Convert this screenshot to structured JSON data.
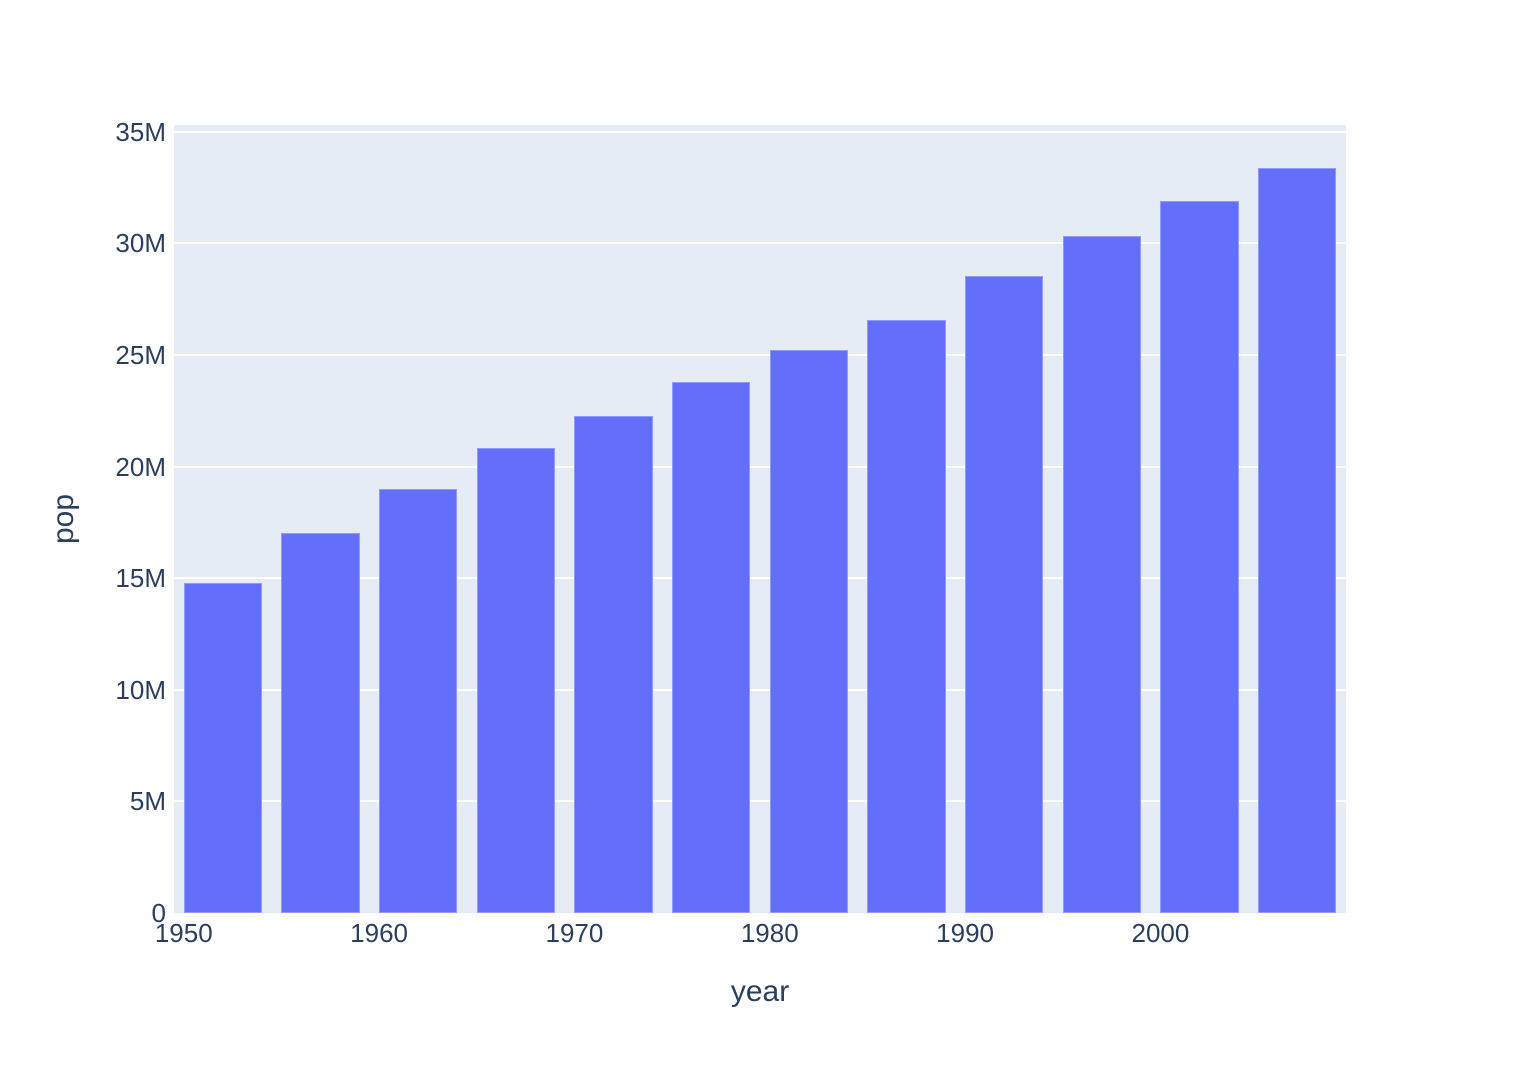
{
  "chart_data": {
    "type": "bar",
    "title": "",
    "xlabel": "year",
    "ylabel": "pop",
    "x": [
      1952,
      1957,
      1962,
      1967,
      1972,
      1977,
      1982,
      1987,
      1992,
      1997,
      2002,
      2007
    ],
    "series": [
      {
        "name": "pop",
        "values": [
          14785584,
          17010154,
          18985849,
          20819767,
          22284500,
          23796400,
          25201900,
          26549700,
          28523502,
          30305843,
          31902268,
          33390141
        ]
      }
    ],
    "bar_width_years": 4,
    "xlim": [
      1949.5,
      2009.5
    ],
    "ylim": [
      0,
      35300000
    ],
    "x_ticks": [
      {
        "value": 1950,
        "label": "1950"
      },
      {
        "value": 1960,
        "label": "1960"
      },
      {
        "value": 1970,
        "label": "1970"
      },
      {
        "value": 1980,
        "label": "1980"
      },
      {
        "value": 1990,
        "label": "1990"
      },
      {
        "value": 2000,
        "label": "2000"
      }
    ],
    "y_ticks": [
      {
        "value": 0,
        "label": "0"
      },
      {
        "value": 5000000,
        "label": "5M"
      },
      {
        "value": 10000000,
        "label": "10M"
      },
      {
        "value": 15000000,
        "label": "15M"
      },
      {
        "value": 20000000,
        "label": "20M"
      },
      {
        "value": 25000000,
        "label": "25M"
      },
      {
        "value": 30000000,
        "label": "30M"
      },
      {
        "value": 35000000,
        "label": "35M"
      }
    ],
    "grid": true,
    "legend": "none",
    "colors": {
      "bar": "#636EFA",
      "plot_background": "#E5ECF6",
      "grid": "#FFFFFF",
      "text": "#2A3F5F"
    }
  }
}
